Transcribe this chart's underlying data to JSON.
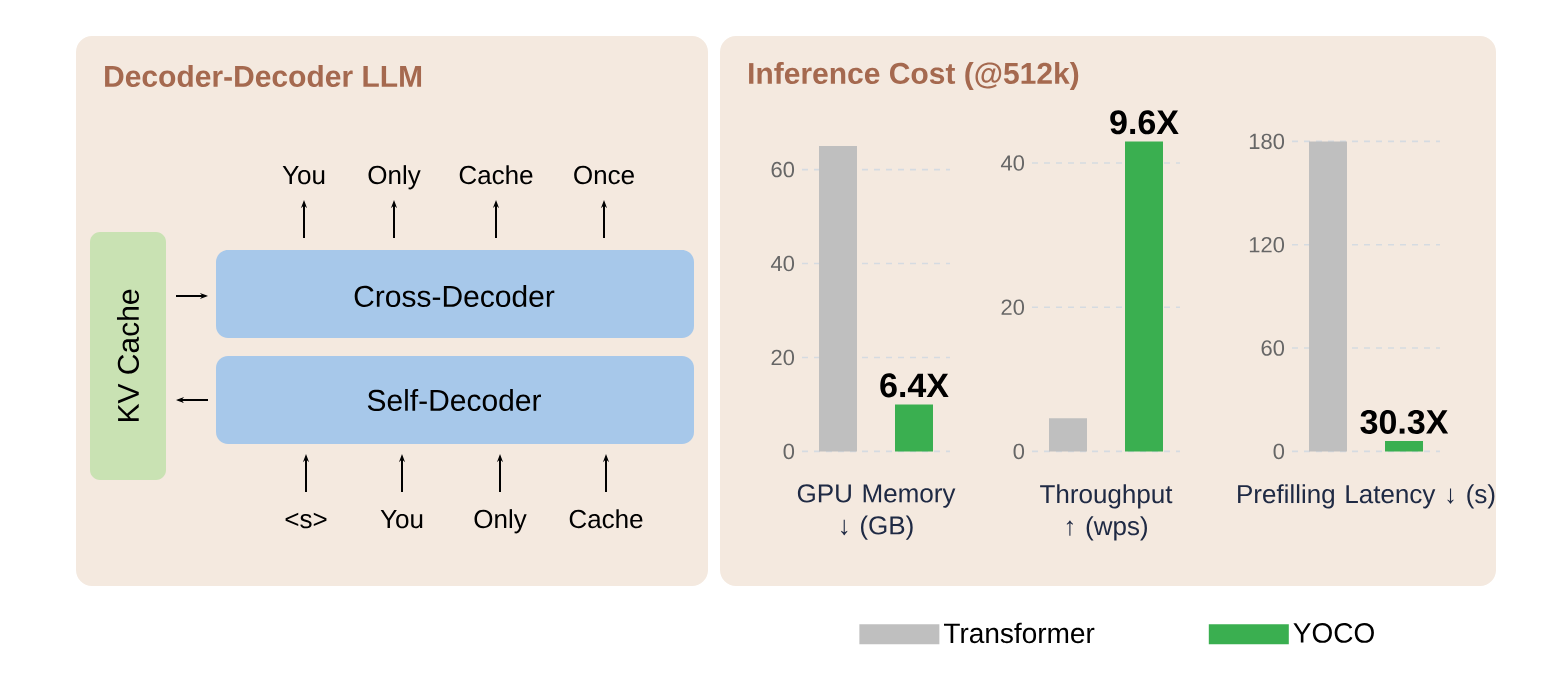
{
  "chart_data": [
    {
      "type": "other",
      "title": "Decoder-Decoder LLM",
      "annotations": [
        "You",
        "Only",
        "Cache",
        "Once",
        "Cross-Decoder",
        "Self-Decoder",
        "KV Cache",
        "<s>",
        "You",
        "Only",
        "Cache"
      ]
    },
    {
      "type": "other",
      "title": "Inference Cost (@512k)"
    },
    {
      "type": "bar",
      "categories": [
        null
      ],
      "xlabel": "GPU Memory ↓ (GB)",
      "ylim": [
        0,
        66
      ],
      "yticks": [
        0,
        20,
        40,
        60
      ],
      "grid": "y",
      "annotations": [
        "6.4X"
      ],
      "series": [
        {
          "color": "#bfbfbf",
          "values": [
            65
          ]
        },
        {
          "color": "#3aaf50",
          "values": [
            10
          ]
        }
      ]
    },
    {
      "type": "bar",
      "categories": [
        null
      ],
      "xlabel": "Throughput ↑ (wps)",
      "ylim": [
        0,
        43
      ],
      "yticks": [
        0,
        20,
        40
      ],
      "grid": "y",
      "legend": "bottom",
      "annotations": [
        "9.6X"
      ],
      "series": [
        {
          "name": "Transformer",
          "color": "#bfbfbf",
          "values": [
            4.6
          ]
        },
        {
          "name": "YOCO",
          "color": "#3aaf50",
          "values": [
            43
          ]
        }
      ]
    },
    {
      "type": "bar",
      "categories": [
        null
      ],
      "xlabel": "Prefilling Latency ↓ (s)",
      "ylim": [
        0,
        180
      ],
      "yticks": [
        0,
        60,
        120,
        180
      ],
      "grid": "y",
      "annotations": [
        "30.3X"
      ],
      "series": [
        {
          "color": "#bfbfbf",
          "values": [
            180
          ]
        },
        {
          "color": "#3aaf50",
          "values": [
            6
          ]
        }
      ]
    }
  ]
}
